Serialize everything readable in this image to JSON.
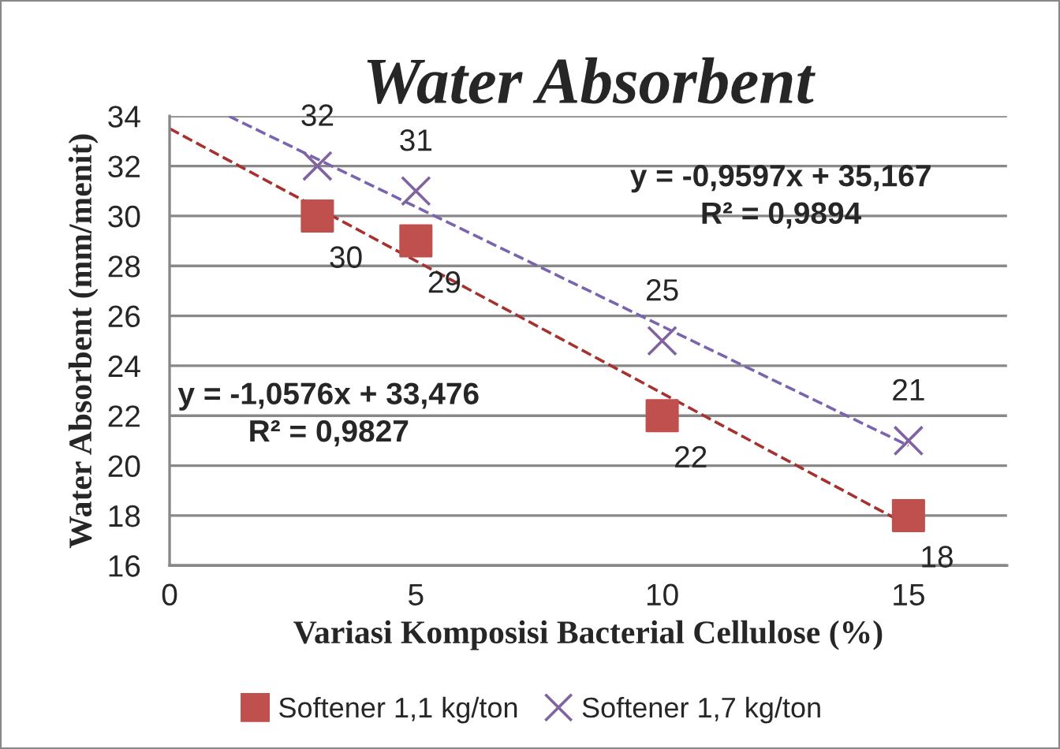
{
  "chart_data": {
    "type": "scatter",
    "title": "Water Absorbent",
    "xlabel": "Variasi Komposisi Bacterial Cellulose (%)",
    "ylabel": "Water Absorbent (mm/menit)",
    "x": [
      3,
      5,
      10,
      15
    ],
    "series": [
      {
        "name": "Softener 1,1 kg/ton",
        "color": "#c0504d",
        "marker": "square",
        "values": [
          30,
          29,
          22,
          18
        ],
        "data_labels": true
      },
      {
        "name": "Softener 1,7 kg/ton",
        "color": "#8064a2",
        "marker": "cross",
        "values": [
          32,
          31,
          25,
          21
        ],
        "data_labels": true
      },
      {
        "type": "line",
        "color": "#a5322f",
        "line_style": "dashed",
        "x": [
          0,
          15
        ],
        "values": [
          33.5,
          17.6
        ]
      },
      {
        "type": "line",
        "color": "#7a64b0",
        "line_style": "dashed",
        "x": [
          1.2,
          15
        ],
        "values": [
          34,
          20.8
        ]
      }
    ],
    "annotations": [
      "y = -0,9597x + 35,167\nR² = 0,9894",
      "y = -1,0576x + 33,476\nR² = 0,9827"
    ],
    "xlim": [
      0,
      17
    ],
    "xticks": [
      0,
      5,
      10,
      15
    ],
    "ylim": [
      16,
      34
    ],
    "yticks": [
      16,
      18,
      20,
      22,
      24,
      26,
      28,
      30,
      32,
      34
    ],
    "grid": "y",
    "legend": "bottom"
  }
}
